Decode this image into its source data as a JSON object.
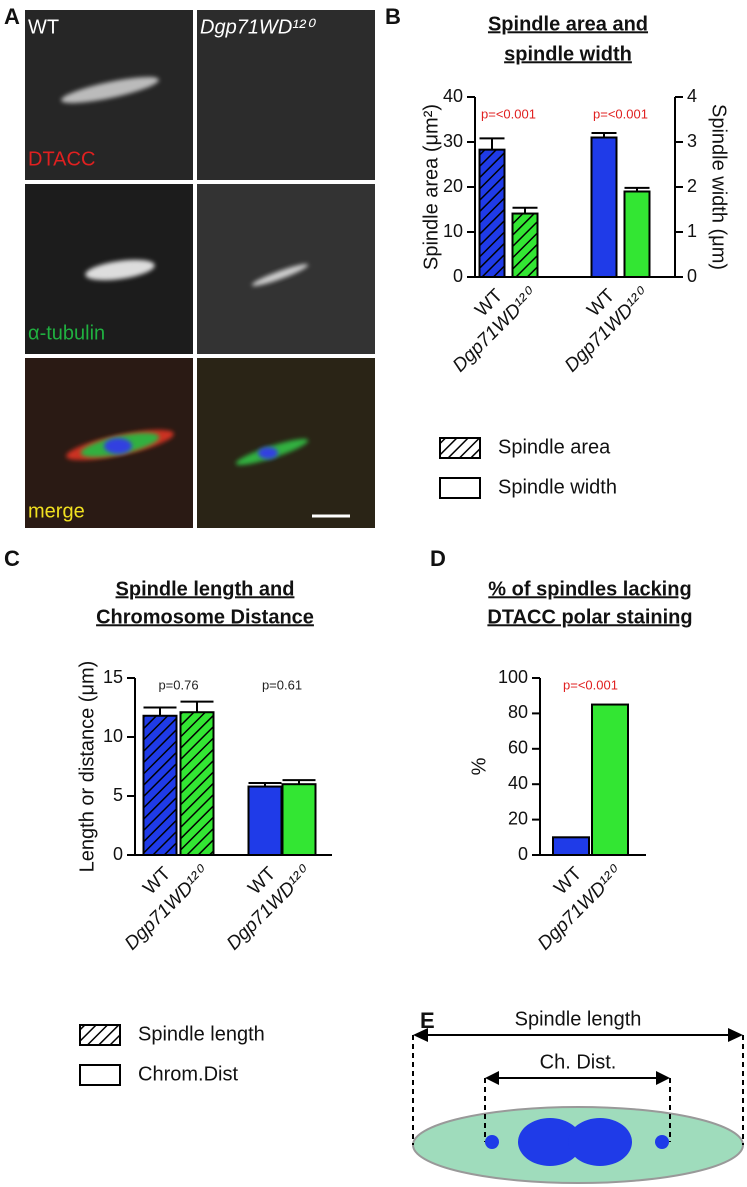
{
  "panel_a": {
    "panel_label": "A",
    "columns": [
      "WT",
      "Dgp71WD¹²⁰"
    ],
    "rows": [
      "DTACC",
      "α-tubulin",
      "merge"
    ]
  },
  "chart_data": [
    {
      "type": "bar",
      "panel_label": "B",
      "title_lines": [
        "Spindle area and",
        "spindle width"
      ],
      "ylabel": "Spindle area (μm²)",
      "y2label": "Spindle width (μm)",
      "categories": [
        "WT",
        "Dgp71WD¹²⁰",
        "WT",
        "Dgp71WD¹²⁰"
      ],
      "colors": [
        "#1f3be8",
        "#33e633",
        "#1f3be8",
        "#33e633"
      ],
      "series": [
        {
          "name": "Spindle area",
          "hatch": true,
          "values": [
            28.3,
            14.1,
            null,
            null
          ],
          "errors": [
            2.5,
            1.3,
            null,
            null
          ]
        },
        {
          "name": "Spindle width",
          "hatch": false,
          "axis": "y2",
          "values": [
            null,
            null,
            3.1,
            1.9
          ],
          "errors": [
            null,
            null,
            0.1,
            0.08
          ]
        }
      ],
      "ylim": [
        0,
        40
      ],
      "yticks": [
        0,
        10,
        20,
        30,
        40
      ],
      "y2lim": [
        0,
        4
      ],
      "y2ticks": [
        0,
        1,
        2,
        3,
        4
      ],
      "annotations": [
        {
          "text": "p=<0.001",
          "color": "#e02020"
        },
        {
          "text": "p=<0.001",
          "color": "#e02020"
        }
      ]
    },
    {
      "type": "bar",
      "panel_label": "C",
      "title_lines": [
        "Spindle length and",
        "Chromosome Distance"
      ],
      "ylabel": "Length or distance (μm)",
      "categories": [
        "WT",
        "Dgp71WD¹²⁰",
        "WT",
        "Dgp71WD¹²⁰"
      ],
      "colors": [
        "#1f3be8",
        "#33e633",
        "#1f3be8",
        "#33e633"
      ],
      "series": [
        {
          "name": "Spindle length",
          "hatch": true,
          "values": [
            11.8,
            12.1,
            null,
            null
          ],
          "errors": [
            0.7,
            0.9,
            null,
            null
          ]
        },
        {
          "name": "Chrom.Dist",
          "hatch": false,
          "values": [
            null,
            null,
            5.8,
            6.0
          ],
          "errors": [
            null,
            null,
            0.3,
            0.35
          ]
        }
      ],
      "ylim": [
        0,
        15
      ],
      "yticks": [
        0,
        5,
        10,
        15
      ],
      "annotations": [
        {
          "text": "p=0.76",
          "color": "#222222"
        },
        {
          "text": "p=0.61",
          "color": "#222222"
        }
      ]
    },
    {
      "type": "bar",
      "panel_label": "D",
      "title_lines": [
        "% of spindles lacking",
        "DTACC polar staining"
      ],
      "ylabel": "%",
      "categories": [
        "WT",
        "Dgp71WD¹²⁰"
      ],
      "colors": [
        "#1f3be8",
        "#33e633"
      ],
      "values": [
        10,
        85
      ],
      "ylim": [
        0,
        100
      ],
      "yticks": [
        0,
        20,
        40,
        60,
        80,
        100
      ],
      "annotations": [
        {
          "text": "p=<0.001",
          "color": "#e02020"
        }
      ]
    }
  ],
  "panel_e": {
    "panel_label": "E",
    "spindle_length": "Spindle length",
    "chrom_distance": "Ch. Dist."
  }
}
